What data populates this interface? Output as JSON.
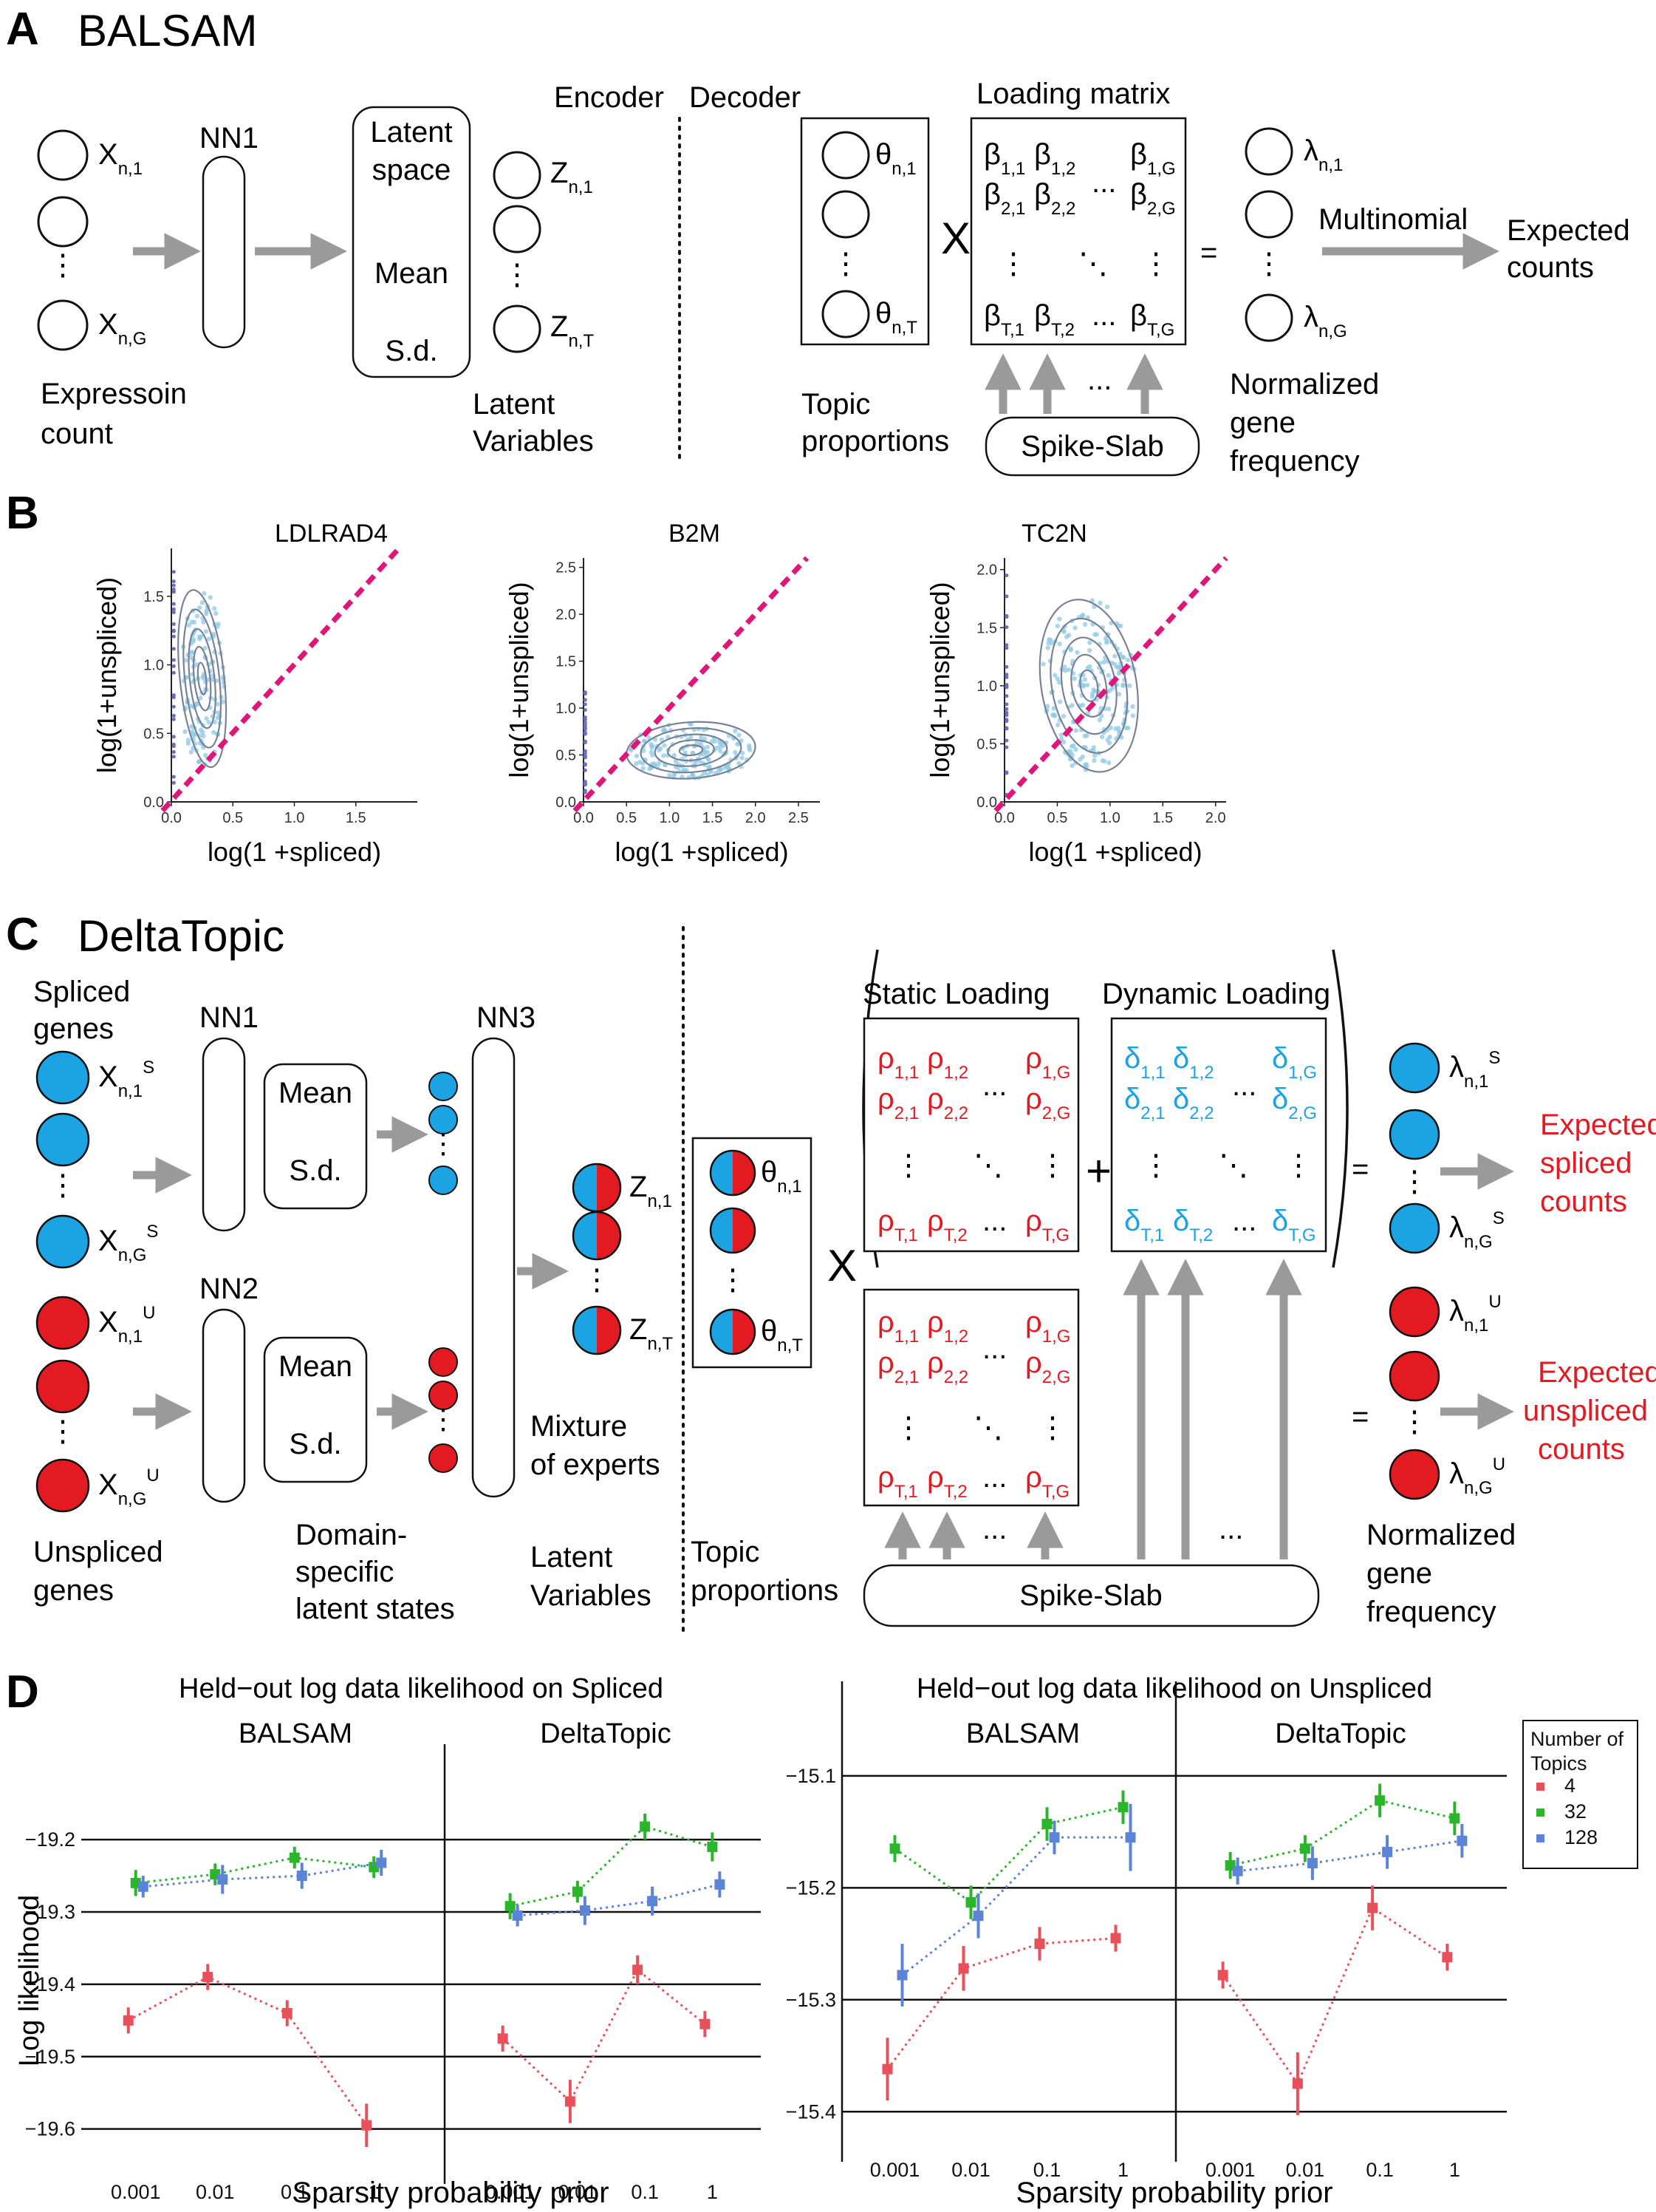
{
  "panel_a": {
    "letter": "A",
    "title": "BALSAM",
    "encoder": "Encoder",
    "decoder": "Decoder",
    "nn1": "NN1",
    "latent_lines": [
      "Latent",
      "space",
      "Mean",
      "S.d."
    ],
    "x_labels": [
      "X",
      "n,1",
      "X",
      "n,G"
    ],
    "z_labels": [
      "Z",
      "n,1",
      "Z",
      "n,T"
    ],
    "expression_count": [
      "Expressoin",
      "count"
    ],
    "latent_variables": [
      "Latent",
      "Variables"
    ],
    "theta_labels": [
      "θ",
      "n,1",
      "θ",
      "n,T"
    ],
    "topic_proportions": [
      "Topic",
      "proportions"
    ],
    "times": "X",
    "loading_matrix": "Loading matrix",
    "beta_rows": [
      [
        "β",
        "1,1",
        "β",
        "1,2",
        "β",
        "1,G"
      ],
      [
        "β",
        "2,1",
        "β",
        "2,2",
        "β",
        "2,G"
      ],
      [
        "β",
        "T,1",
        "β",
        "T,2",
        "β",
        "T,G"
      ]
    ],
    "equals": "=",
    "lambda_labels": [
      "λ",
      "n,1",
      "λ",
      "n,G"
    ],
    "multinomial": "Multinomial",
    "expected_counts": [
      "Expected",
      "counts"
    ],
    "normalized": [
      "Normalized",
      "gene",
      "frequency"
    ],
    "spike_slab": "Spike-Slab",
    "dots": "...",
    "vdots": "⋮",
    "ddots": "⋱"
  },
  "panel_b": {
    "letter": "B",
    "xlabel": "log(1 +spliced)",
    "ylabel": "log(1+unspliced)",
    "colors": {
      "diag": "#e0157a",
      "points": "#8ecae6",
      "contour": "#7a8296"
    }
  },
  "panel_c": {
    "letter": "C",
    "title": "DeltaTopic",
    "spliced_genes": [
      "Spliced",
      "genes"
    ],
    "unspliced_genes": [
      "Unspliced",
      "genes"
    ],
    "xs_labels": [
      "X",
      "n,1",
      "S",
      "X",
      "n,G",
      "S"
    ],
    "xu_labels": [
      "X",
      "n,1",
      "U",
      "X",
      "n,G",
      "U"
    ],
    "nn1": "NN1",
    "nn2": "NN2",
    "nn3": "NN3",
    "mean": "Mean",
    "sd": "S.d.",
    "domain_states": [
      "Domain-",
      "specific",
      "latent states"
    ],
    "mixture": [
      "Mixture",
      "of experts"
    ],
    "latent_variables": [
      "Latent",
      "Variables"
    ],
    "z_labels": [
      "Z",
      "n,1",
      "Z",
      "n,T"
    ],
    "theta_labels": [
      "θ",
      "n,1",
      "θ",
      "n,T"
    ],
    "topic_proportions": [
      "Topic",
      "proportions"
    ],
    "times": "X",
    "plus": "+",
    "equals": "=",
    "static_loading": "Static Loading",
    "dynamic_loading": "Dynamic Loading",
    "rho_rows": [
      [
        "ρ",
        "1,1",
        "ρ",
        "1,2",
        "ρ",
        "1,G"
      ],
      [
        "ρ",
        "2,1",
        "ρ",
        "2,2",
        "ρ",
        "2,G"
      ],
      [
        "ρ",
        "T,1",
        "ρ",
        "T,2",
        "ρ",
        "T,G"
      ]
    ],
    "delta_rows": [
      [
        "δ",
        "1,1",
        "δ",
        "1,2",
        "δ",
        "1,G"
      ],
      [
        "δ",
        "2,1",
        "δ",
        "2,2",
        "δ",
        "2,G"
      ],
      [
        "δ",
        "T,1",
        "δ",
        "T,2",
        "δ",
        "T,G"
      ]
    ],
    "lambda_s": [
      "λ",
      "n,1",
      "S",
      "λ",
      "n,G",
      "S"
    ],
    "lambda_u": [
      "λ",
      "n,1",
      "U",
      "λ",
      "n,G",
      "U"
    ],
    "expected_spliced": [
      "Expected",
      "spliced",
      "counts"
    ],
    "expected_unspliced": [
      "Expected",
      "unspliced",
      "counts"
    ],
    "normalized": [
      "Normalized",
      "gene",
      "frequency"
    ],
    "spike_slab": "Spike-Slab",
    "dots": "...",
    "colors": {
      "spliced": "#1ba3e3",
      "unspliced": "#e31a22",
      "rho": "#e31a22",
      "delta": "#1ba3e3"
    }
  },
  "panel_d": {
    "letter": "D",
    "ylabel": "Log likelihood",
    "xlabel": "Sparsity probability prior",
    "legend_title": [
      "Number of",
      "Topics"
    ],
    "legend_items": [
      "4",
      "32",
      "128"
    ],
    "colors": {
      "4": "#e8505b",
      "32": "#2bb52b",
      "128": "#5b84d6"
    }
  },
  "chart_data": [
    {
      "type": "scatter",
      "title": "LDLRAD4",
      "xlabel": "log(1 +spliced)",
      "ylabel": "log(1+unspliced)",
      "xticks": [
        "0.0",
        "0.5",
        "1.0",
        "1.5"
      ],
      "yticks": [
        "0.0",
        "0.5",
        "1.0",
        "1.5"
      ],
      "xlim": [
        0,
        2.0
      ],
      "ylim": [
        0,
        1.85
      ]
    },
    {
      "type": "scatter",
      "title": "B2M",
      "xlabel": "log(1 +spliced)",
      "ylabel": "log(1+unspliced)",
      "xticks": [
        "0.0",
        "0.5",
        "1.0",
        "1.5",
        "2.0",
        "2.5"
      ],
      "yticks": [
        "0.0",
        "0.5",
        "1.0",
        "1.5",
        "2.0",
        "2.5"
      ],
      "xlim": [
        0,
        2.75
      ],
      "ylim": [
        0,
        2.6
      ]
    },
    {
      "type": "scatter",
      "title": "TC2N",
      "xlabel": "log(1 +spliced)",
      "ylabel": "log(1+unspliced)",
      "xticks": [
        "0.0",
        "0.5",
        "1.0",
        "1.5",
        "2.0"
      ],
      "yticks": [
        "0.0",
        "0.5",
        "1.0",
        "1.5",
        "2.0"
      ],
      "xlim": [
        0,
        2.1
      ],
      "ylim": [
        0,
        2.1
      ]
    },
    {
      "type": "line",
      "title": "Held−out log data likelihood on Spliced",
      "facets": [
        "BALSAM",
        "DeltaTopic"
      ],
      "categories": [
        "0.001",
        "0.01",
        "0.1",
        "1"
      ],
      "xlabel": "Sparsity probability prior",
      "ylabel": "Log likelihood",
      "yticks": [
        "−19.2",
        "−19.3",
        "−19.4",
        "−19.5",
        "−19.6"
      ],
      "ylim": [
        -19.63,
        -19.16
      ],
      "series": [
        {
          "name": "4",
          "facet": "BALSAM",
          "values": [
            -19.45,
            -19.39,
            -19.44,
            -19.595
          ],
          "err": [
            0.018,
            0.018,
            0.018,
            0.03
          ]
        },
        {
          "name": "32",
          "facet": "BALSAM",
          "values": [
            -19.26,
            -19.248,
            -19.225,
            -19.238
          ],
          "err": [
            0.018,
            0.015,
            0.015,
            0.015
          ]
        },
        {
          "name": "128",
          "facet": "BALSAM",
          "values": [
            -19.265,
            -19.255,
            -19.25,
            -19.232
          ],
          "err": [
            0.015,
            0.02,
            0.018,
            0.018
          ]
        },
        {
          "name": "4",
          "facet": "DeltaTopic",
          "values": [
            -19.475,
            -19.562,
            -19.38,
            -19.455
          ],
          "err": [
            0.018,
            0.03,
            0.02,
            0.018
          ]
        },
        {
          "name": "32",
          "facet": "DeltaTopic",
          "values": [
            -19.292,
            -19.272,
            -19.182,
            -19.21
          ],
          "err": [
            0.018,
            0.015,
            0.018,
            0.02
          ]
        },
        {
          "name": "128",
          "facet": "DeltaTopic",
          "values": [
            -19.305,
            -19.298,
            -19.285,
            -19.262
          ],
          "err": [
            0.015,
            0.02,
            0.02,
            0.018
          ]
        }
      ]
    },
    {
      "type": "line",
      "title": "Held−out log data likelihood on Unspliced",
      "facets": [
        "BALSAM",
        "DeltaTopic"
      ],
      "categories": [
        "0.001",
        "0.01",
        "0.1",
        "1"
      ],
      "xlabel": "Sparsity probability prior",
      "ylabel": "Log likelihood",
      "yticks": [
        "−15.1",
        "−15.2",
        "−15.3",
        "−15.4"
      ],
      "ylim": [
        -15.415,
        -15.075
      ],
      "series": [
        {
          "name": "4",
          "facet": "BALSAM",
          "values": [
            -15.362,
            -15.272,
            -15.25,
            -15.245
          ],
          "err": [
            0.028,
            0.02,
            0.015,
            0.012
          ]
        },
        {
          "name": "32",
          "facet": "BALSAM",
          "values": [
            -15.165,
            -15.213,
            -15.143,
            -15.128
          ],
          "err": [
            0.012,
            0.015,
            0.015,
            0.015
          ]
        },
        {
          "name": "128",
          "facet": "BALSAM",
          "values": [
            -15.278,
            -15.225,
            -15.155,
            -15.155
          ],
          "err": [
            0.028,
            0.02,
            0.015,
            0.03
          ]
        },
        {
          "name": "4",
          "facet": "DeltaTopic",
          "values": [
            -15.278,
            -15.375,
            -15.218,
            -15.262
          ],
          "err": [
            0.012,
            0.028,
            0.02,
            0.012
          ]
        },
        {
          "name": "32",
          "facet": "DeltaTopic",
          "values": [
            -15.18,
            -15.165,
            -15.122,
            -15.138
          ],
          "err": [
            0.012,
            0.012,
            0.015,
            0.015
          ]
        },
        {
          "name": "128",
          "facet": "DeltaTopic",
          "values": [
            -15.185,
            -15.178,
            -15.168,
            -15.158
          ],
          "err": [
            0.012,
            0.015,
            0.015,
            0.015
          ]
        }
      ]
    }
  ]
}
